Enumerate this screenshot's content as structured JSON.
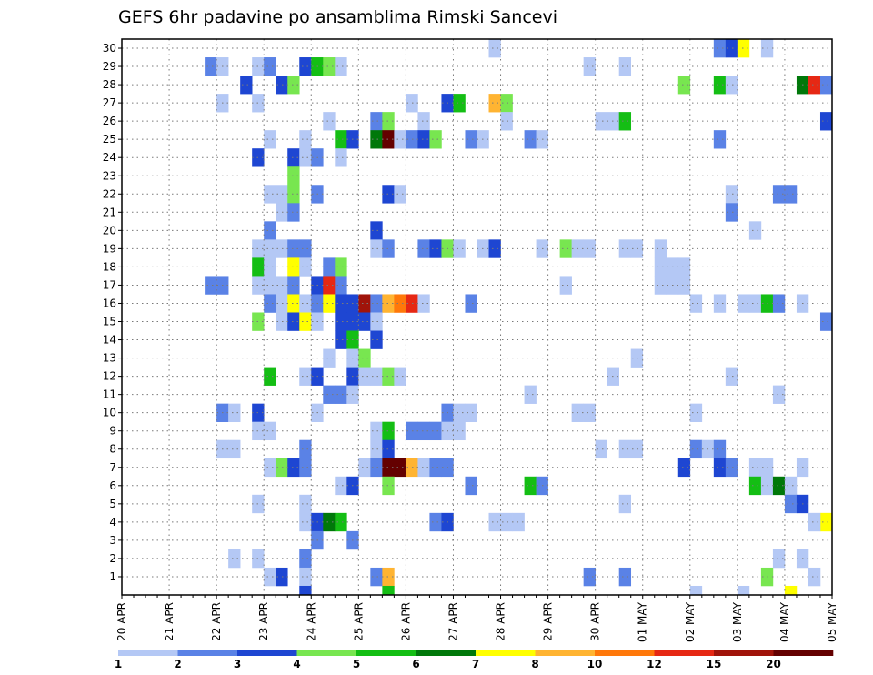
{
  "chart_data": {
    "type": "heatmap",
    "title": "GEFS 6hr padavine po ansamblima Rimski Sancevi",
    "xlabel": "",
    "ylabel": "",
    "x_tick_labels": [
      "20 APR",
      "21 APR",
      "22 APR",
      "23 APR",
      "24 APR",
      "25 APR",
      "26 APR",
      "27 APR",
      "28 APR",
      "29 APR",
      "30 APR",
      "01 MAY",
      "02 MAY",
      "03 MAY",
      "04 MAY",
      "05 MAY"
    ],
    "y_tick_labels": [
      "1",
      "2",
      "3",
      "4",
      "5",
      "6",
      "7",
      "8",
      "9",
      "10",
      "11",
      "12",
      "13",
      "14",
      "15",
      "16",
      "17",
      "18",
      "19",
      "20",
      "21",
      "22",
      "23",
      "24",
      "25",
      "26",
      "27",
      "28",
      "29",
      "30"
    ],
    "ylim": [
      0,
      30
    ],
    "time_steps": 60,
    "steps_per_day": 4,
    "grid": true,
    "colorbar": {
      "levels": [
        "1",
        "2",
        "3",
        "4",
        "5",
        "6",
        "7",
        "8",
        "10",
        "12",
        "15",
        "20"
      ],
      "colors": [
        "#b4c8f5",
        "#5a82e6",
        "#1e46d2",
        "#78e650",
        "#14be14",
        "#00780a",
        "#ffff00",
        "#ffb432",
        "#ff780a",
        "#e62814",
        "#a0140a",
        "#640000"
      ]
    },
    "cells": [
      [
        30,
        31,
        0
      ],
      [
        30,
        50,
        1
      ],
      [
        30,
        51,
        2
      ],
      [
        30,
        52,
        6
      ],
      [
        30,
        54,
        0
      ],
      [
        29,
        7,
        1
      ],
      [
        29,
        8,
        0
      ],
      [
        29,
        11,
        0
      ],
      [
        29,
        12,
        1
      ],
      [
        29,
        15,
        2
      ],
      [
        29,
        16,
        4
      ],
      [
        29,
        17,
        3
      ],
      [
        29,
        18,
        0
      ],
      [
        29,
        39,
        0
      ],
      [
        29,
        42,
        0
      ],
      [
        28,
        10,
        2
      ],
      [
        28,
        13,
        2
      ],
      [
        28,
        14,
        3
      ],
      [
        28,
        47,
        3
      ],
      [
        28,
        50,
        4
      ],
      [
        28,
        51,
        0
      ],
      [
        28,
        57,
        5
      ],
      [
        28,
        58,
        9
      ],
      [
        28,
        59,
        1
      ],
      [
        27,
        8,
        0
      ],
      [
        27,
        11,
        0
      ],
      [
        27,
        24,
        0
      ],
      [
        27,
        27,
        2
      ],
      [
        27,
        28,
        4
      ],
      [
        27,
        31,
        7
      ],
      [
        27,
        32,
        3
      ],
      [
        26,
        17,
        0
      ],
      [
        26,
        21,
        1
      ],
      [
        26,
        22,
        3
      ],
      [
        26,
        25,
        0
      ],
      [
        26,
        32,
        0
      ],
      [
        26,
        40,
        0
      ],
      [
        26,
        41,
        0
      ],
      [
        26,
        42,
        4
      ],
      [
        26,
        59,
        2
      ],
      [
        25,
        12,
        0
      ],
      [
        25,
        15,
        0
      ],
      [
        25,
        18,
        4
      ],
      [
        25,
        19,
        2
      ],
      [
        25,
        21,
        5
      ],
      [
        25,
        22,
        11
      ],
      [
        25,
        23,
        0
      ],
      [
        25,
        24,
        1
      ],
      [
        25,
        25,
        2
      ],
      [
        25,
        26,
        3
      ],
      [
        25,
        29,
        1
      ],
      [
        25,
        30,
        0
      ],
      [
        25,
        34,
        1
      ],
      [
        25,
        35,
        0
      ],
      [
        25,
        50,
        1
      ],
      [
        24,
        11,
        2
      ],
      [
        24,
        14,
        2
      ],
      [
        24,
        15,
        0
      ],
      [
        24,
        16,
        1
      ],
      [
        24,
        18,
        0
      ],
      [
        23,
        14,
        3
      ],
      [
        22,
        12,
        0
      ],
      [
        22,
        13,
        0
      ],
      [
        22,
        14,
        3
      ],
      [
        22,
        16,
        1
      ],
      [
        22,
        22,
        2
      ],
      [
        22,
        23,
        0
      ],
      [
        22,
        51,
        0
      ],
      [
        22,
        55,
        1
      ],
      [
        22,
        56,
        1
      ],
      [
        21,
        13,
        0
      ],
      [
        21,
        14,
        1
      ],
      [
        21,
        51,
        1
      ],
      [
        20,
        12,
        1
      ],
      [
        20,
        21,
        2
      ],
      [
        20,
        53,
        0
      ],
      [
        19,
        11,
        0
      ],
      [
        19,
        12,
        0
      ],
      [
        19,
        13,
        0
      ],
      [
        19,
        14,
        1
      ],
      [
        19,
        15,
        1
      ],
      [
        19,
        21,
        0
      ],
      [
        19,
        22,
        1
      ],
      [
        19,
        25,
        1
      ],
      [
        19,
        26,
        2
      ],
      [
        19,
        27,
        3
      ],
      [
        19,
        28,
        0
      ],
      [
        19,
        30,
        0
      ],
      [
        19,
        31,
        2
      ],
      [
        19,
        35,
        0
      ],
      [
        19,
        37,
        3
      ],
      [
        19,
        38,
        0
      ],
      [
        19,
        39,
        0
      ],
      [
        19,
        42,
        0
      ],
      [
        19,
        43,
        0
      ],
      [
        19,
        45,
        0
      ],
      [
        18,
        11,
        4
      ],
      [
        18,
        12,
        0
      ],
      [
        18,
        14,
        6
      ],
      [
        18,
        15,
        0
      ],
      [
        18,
        17,
        1
      ],
      [
        18,
        18,
        3
      ],
      [
        18,
        45,
        0
      ],
      [
        18,
        46,
        0
      ],
      [
        18,
        47,
        0
      ],
      [
        17,
        7,
        1
      ],
      [
        17,
        8,
        1
      ],
      [
        17,
        11,
        0
      ],
      [
        17,
        12,
        0
      ],
      [
        17,
        13,
        0
      ],
      [
        17,
        14,
        1
      ],
      [
        17,
        16,
        2
      ],
      [
        17,
        17,
        9
      ],
      [
        17,
        18,
        1
      ],
      [
        17,
        37,
        0
      ],
      [
        17,
        45,
        0
      ],
      [
        17,
        46,
        0
      ],
      [
        17,
        47,
        0
      ],
      [
        16,
        12,
        1
      ],
      [
        16,
        13,
        0
      ],
      [
        16,
        14,
        6
      ],
      [
        16,
        15,
        0
      ],
      [
        16,
        16,
        1
      ],
      [
        16,
        17,
        6
      ],
      [
        16,
        18,
        2
      ],
      [
        16,
        19,
        2
      ],
      [
        16,
        20,
        10
      ],
      [
        16,
        21,
        1
      ],
      [
        16,
        22,
        7
      ],
      [
        16,
        23,
        8
      ],
      [
        16,
        24,
        9
      ],
      [
        16,
        25,
        0
      ],
      [
        16,
        29,
        1
      ],
      [
        16,
        48,
        0
      ],
      [
        16,
        50,
        0
      ],
      [
        16,
        52,
        0
      ],
      [
        16,
        53,
        0
      ],
      [
        16,
        54,
        4
      ],
      [
        16,
        55,
        1
      ],
      [
        16,
        57,
        0
      ],
      [
        15,
        11,
        3
      ],
      [
        15,
        13,
        0
      ],
      [
        15,
        14,
        2
      ],
      [
        15,
        15,
        6
      ],
      [
        15,
        16,
        0
      ],
      [
        15,
        18,
        2
      ],
      [
        15,
        19,
        2
      ],
      [
        15,
        20,
        2
      ],
      [
        15,
        21,
        0
      ],
      [
        15,
        59,
        1
      ],
      [
        14,
        18,
        2
      ],
      [
        14,
        19,
        4
      ],
      [
        14,
        21,
        2
      ],
      [
        13,
        17,
        0
      ],
      [
        13,
        19,
        0
      ],
      [
        13,
        20,
        3
      ],
      [
        13,
        43,
        0
      ],
      [
        12,
        12,
        4
      ],
      [
        12,
        15,
        0
      ],
      [
        12,
        16,
        2
      ],
      [
        12,
        19,
        2
      ],
      [
        12,
        20,
        0
      ],
      [
        12,
        21,
        0
      ],
      [
        12,
        22,
        3
      ],
      [
        12,
        23,
        0
      ],
      [
        12,
        41,
        0
      ],
      [
        12,
        51,
        0
      ],
      [
        11,
        17,
        1
      ],
      [
        11,
        18,
        1
      ],
      [
        11,
        19,
        0
      ],
      [
        11,
        34,
        0
      ],
      [
        11,
        55,
        0
      ],
      [
        10,
        8,
        1
      ],
      [
        10,
        9,
        0
      ],
      [
        10,
        11,
        2
      ],
      [
        10,
        16,
        0
      ],
      [
        10,
        27,
        1
      ],
      [
        10,
        28,
        0
      ],
      [
        10,
        29,
        0
      ],
      [
        10,
        38,
        0
      ],
      [
        10,
        39,
        0
      ],
      [
        10,
        48,
        0
      ],
      [
        9,
        11,
        0
      ],
      [
        9,
        12,
        0
      ],
      [
        9,
        21,
        0
      ],
      [
        9,
        22,
        4
      ],
      [
        9,
        24,
        1
      ],
      [
        9,
        25,
        1
      ],
      [
        9,
        26,
        1
      ],
      [
        9,
        27,
        0
      ],
      [
        9,
        28,
        0
      ],
      [
        8,
        8,
        0
      ],
      [
        8,
        9,
        0
      ],
      [
        8,
        15,
        1
      ],
      [
        8,
        21,
        0
      ],
      [
        8,
        22,
        2
      ],
      [
        8,
        40,
        0
      ],
      [
        8,
        42,
        0
      ],
      [
        8,
        43,
        0
      ],
      [
        8,
        48,
        1
      ],
      [
        8,
        49,
        0
      ],
      [
        8,
        50,
        1
      ],
      [
        7,
        12,
        0
      ],
      [
        7,
        13,
        3
      ],
      [
        7,
        14,
        2
      ],
      [
        7,
        15,
        1
      ],
      [
        7,
        20,
        0
      ],
      [
        7,
        21,
        1
      ],
      [
        7,
        22,
        11
      ],
      [
        7,
        23,
        11
      ],
      [
        7,
        24,
        7
      ],
      [
        7,
        25,
        0
      ],
      [
        7,
        26,
        1
      ],
      [
        7,
        27,
        1
      ],
      [
        7,
        47,
        2
      ],
      [
        7,
        50,
        2
      ],
      [
        7,
        51,
        1
      ],
      [
        7,
        53,
        0
      ],
      [
        7,
        54,
        0
      ],
      [
        7,
        57,
        0
      ],
      [
        6,
        18,
        0
      ],
      [
        6,
        19,
        2
      ],
      [
        6,
        22,
        3
      ],
      [
        6,
        29,
        1
      ],
      [
        6,
        34,
        4
      ],
      [
        6,
        35,
        1
      ],
      [
        6,
        53,
        4
      ],
      [
        6,
        54,
        0
      ],
      [
        6,
        55,
        5
      ],
      [
        6,
        56,
        0
      ],
      [
        5,
        11,
        0
      ],
      [
        5,
        15,
        0
      ],
      [
        5,
        42,
        0
      ],
      [
        5,
        56,
        1
      ],
      [
        5,
        57,
        2
      ],
      [
        4,
        15,
        0
      ],
      [
        4,
        16,
        2
      ],
      [
        4,
        17,
        5
      ],
      [
        4,
        18,
        4
      ],
      [
        4,
        26,
        1
      ],
      [
        4,
        27,
        2
      ],
      [
        4,
        31,
        0
      ],
      [
        4,
        32,
        0
      ],
      [
        4,
        33,
        0
      ],
      [
        4,
        59,
        6
      ],
      [
        4,
        58,
        0
      ],
      [
        3,
        16,
        1
      ],
      [
        3,
        19,
        1
      ],
      [
        2,
        9,
        0
      ],
      [
        2,
        11,
        0
      ],
      [
        2,
        15,
        1
      ],
      [
        2,
        55,
        0
      ],
      [
        2,
        57,
        0
      ],
      [
        1,
        12,
        0
      ],
      [
        1,
        13,
        2
      ],
      [
        1,
        15,
        0
      ],
      [
        1,
        21,
        1
      ],
      [
        1,
        22,
        7
      ],
      [
        1,
        39,
        1
      ],
      [
        1,
        42,
        1
      ],
      [
        1,
        54,
        3
      ],
      [
        1,
        58,
        0
      ],
      [
        0,
        15,
        2
      ],
      [
        0,
        22,
        4
      ],
      [
        0,
        48,
        0
      ],
      [
        0,
        52,
        0
      ],
      [
        0,
        56,
        6
      ]
    ]
  }
}
